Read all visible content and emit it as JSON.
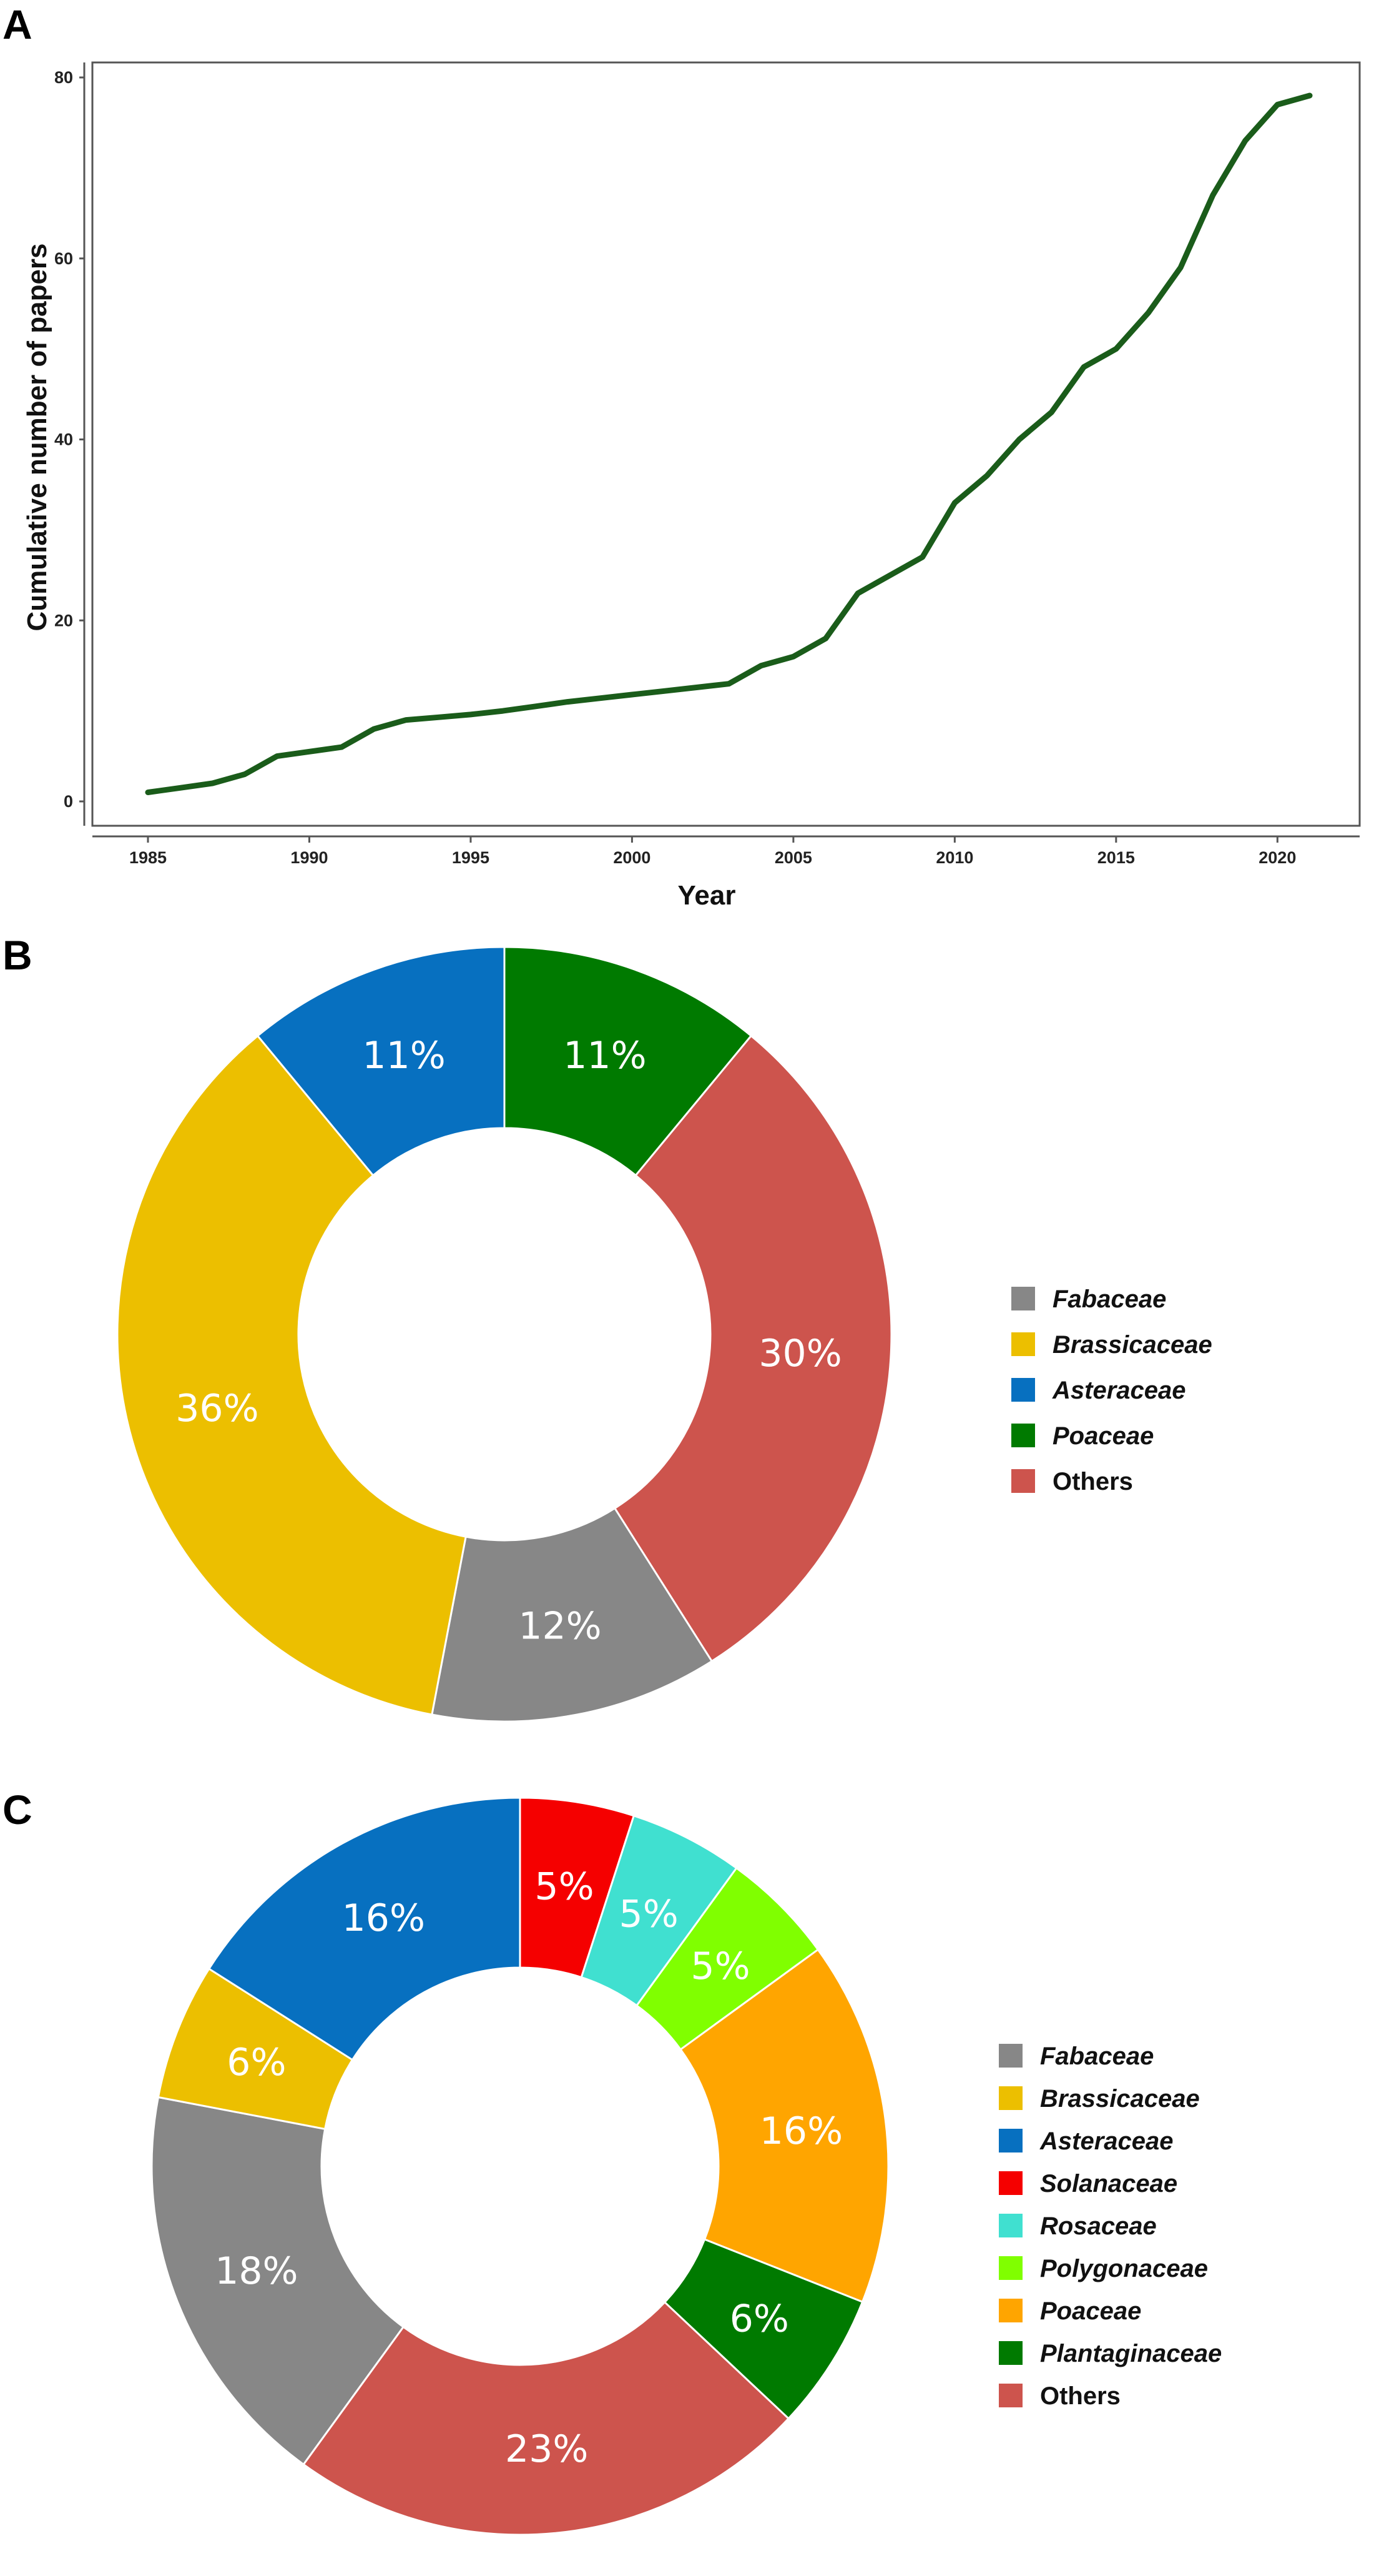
{
  "chart_data": [
    {
      "panel": "A",
      "type": "line",
      "title": "",
      "xlabel": "Year",
      "ylabel": "Cumulative number of papers",
      "xlim": [
        1985,
        2021
      ],
      "ylim": [
        0,
        80
      ],
      "xticks": [
        1985,
        1990,
        1995,
        2000,
        2005,
        2010,
        2015,
        2020
      ],
      "yticks": [
        0,
        20,
        40,
        60,
        80
      ],
      "grid": false,
      "series": [
        {
          "name": "Cumulative papers",
          "color": "#1a5c1a",
          "x": [
            1985,
            1986,
            1987,
            1988,
            1989,
            1990,
            1991,
            1992,
            1993,
            1994,
            1995,
            1996,
            1997,
            1998,
            1999,
            2000,
            2001,
            2002,
            2003,
            2004,
            2005,
            2006,
            2007,
            2008,
            2009,
            2010,
            2011,
            2012,
            2013,
            2014,
            2015,
            2016,
            2017,
            2018,
            2019,
            2020,
            2021
          ],
          "values": [
            1,
            1.5,
            2,
            3,
            5,
            5.5,
            6,
            8,
            9,
            9.3,
            9.6,
            10,
            10.5,
            11,
            11.4,
            11.8,
            12.2,
            12.6,
            13,
            15,
            16,
            18,
            23,
            25,
            27,
            33,
            36,
            40,
            43,
            48,
            50,
            54,
            59,
            67,
            73,
            77,
            78
          ]
        }
      ]
    },
    {
      "panel": "B",
      "type": "pie",
      "donut": true,
      "title": "",
      "categories": [
        "Fabaceae",
        "Brassicaceae",
        "Asteraceae",
        "Poaceae",
        "Others"
      ],
      "values": [
        12,
        36,
        11,
        11,
        30
      ],
      "labels": [
        "12%",
        "36%",
        "11%",
        "11%",
        "30%"
      ],
      "colors": [
        "#878787",
        "#ecbf00",
        "#0770c0",
        "#007a00",
        "#cd544d"
      ],
      "italic": [
        true,
        true,
        true,
        true,
        false
      ],
      "legend": "right"
    },
    {
      "panel": "C",
      "type": "pie",
      "donut": true,
      "title": "",
      "categories": [
        "Fabaceae",
        "Brassicaceae",
        "Asteraceae",
        "Solanaceae",
        "Rosaceae",
        "Polygonaceae",
        "Poaceae",
        "Plantaginaceae",
        "Others"
      ],
      "values": [
        18,
        6,
        16,
        5,
        5,
        5,
        16,
        6,
        23
      ],
      "labels": [
        "18%",
        "6%",
        "16%",
        "5%",
        "5%",
        "5%",
        "16%",
        "6%",
        "23%"
      ],
      "colors": [
        "#878787",
        "#ecbf00",
        "#0770c0",
        "#f50000",
        "#40e0d0",
        "#80ff00",
        "#ffa500",
        "#007a00",
        "#cd544d"
      ],
      "italic": [
        true,
        true,
        true,
        true,
        true,
        true,
        true,
        true,
        false
      ],
      "legend": "right"
    }
  ]
}
